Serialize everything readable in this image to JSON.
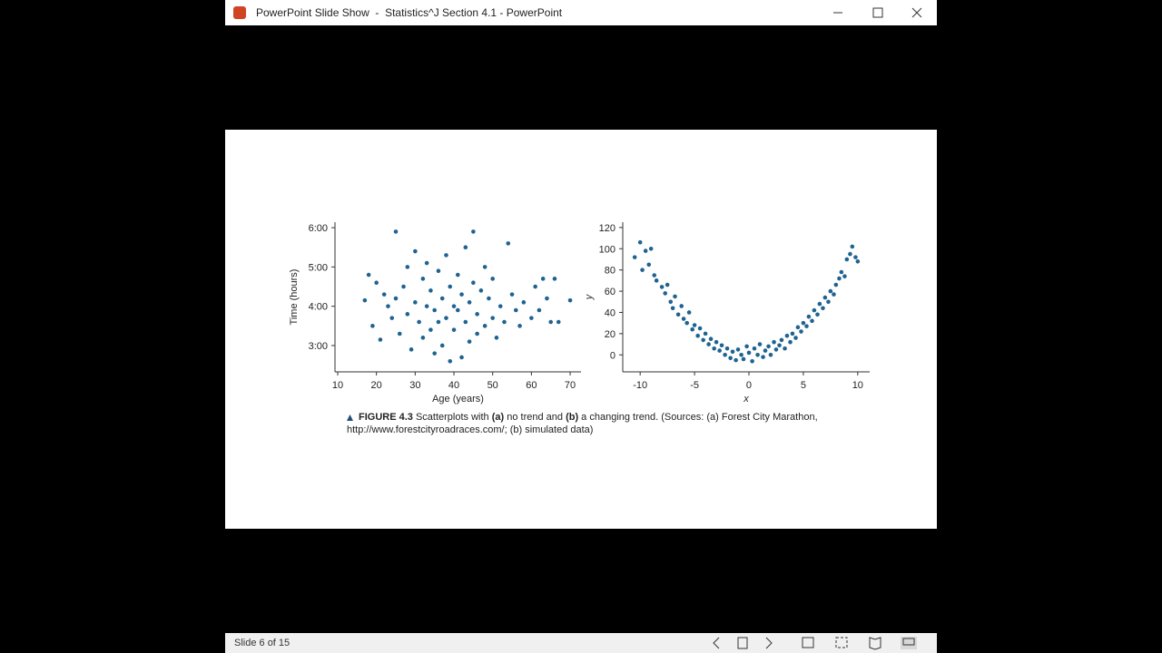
{
  "window": {
    "title": "PowerPoint Slide Show  -  Statistics^J Section 4.1 - PowerPoint"
  },
  "status": "Slide 6 of 15",
  "caption": [
    {
      "text": "FIGURE 4.3",
      "bold": true
    },
    {
      "text": " Scatterplots with ",
      "bold": false
    },
    {
      "text": "(a)",
      "bold": true
    },
    {
      "text": " no trend and ",
      "bold": false
    },
    {
      "text": "(b)",
      "bold": true
    },
    {
      "text": " a changing trend. (Sources: (a) Forest City Marathon, http://www.forestcityroadraces.com/; (b) simulated data)",
      "bold": false
    }
  ],
  "chart_data": [
    {
      "type": "scatter",
      "x_label": "Age (years)",
      "y_label": "Time (hours)",
      "color": "#1f6391",
      "xlim": [
        9.3,
        72.8
      ],
      "xticks": [
        10,
        20,
        30,
        40,
        50,
        60,
        70
      ],
      "ylim": [
        2.33,
        6.14
      ],
      "yticks": [
        {
          "value": 3,
          "label": "3:00"
        },
        {
          "value": 4,
          "label": "4:00"
        },
        {
          "value": 5,
          "label": "5:00"
        },
        {
          "value": 6,
          "label": "6:00"
        }
      ],
      "x": [
        17,
        18,
        19,
        20,
        21,
        22,
        23,
        24,
        25,
        25,
        26,
        27,
        28,
        28,
        29,
        30,
        30,
        31,
        32,
        32,
        33,
        33,
        34,
        34,
        35,
        35,
        36,
        36,
        37,
        37,
        38,
        38,
        39,
        39,
        40,
        40,
        41,
        41,
        42,
        42,
        43,
        43,
        44,
        44,
        45,
        45,
        46,
        46,
        47,
        48,
        48,
        49,
        50,
        50,
        51,
        52,
        53,
        54,
        55,
        56,
        57,
        58,
        60,
        61,
        62,
        63,
        64,
        65,
        66,
        67,
        70
      ],
      "values": [
        4.15,
        4.8,
        3.5,
        4.6,
        3.15,
        4.3,
        4.0,
        3.7,
        5.9,
        4.2,
        3.3,
        4.5,
        5.0,
        3.8,
        2.9,
        4.1,
        5.4,
        3.6,
        4.7,
        3.2,
        4.0,
        5.1,
        3.4,
        4.4,
        2.8,
        3.9,
        4.9,
        3.6,
        4.2,
        3.0,
        5.3,
        3.7,
        4.5,
        2.6,
        4.0,
        3.4,
        4.8,
        3.9,
        2.7,
        4.3,
        5.5,
        3.6,
        4.1,
        3.1,
        5.9,
        4.6,
        3.8,
        3.3,
        4.4,
        5.0,
        3.5,
        4.2,
        3.7,
        4.7,
        3.2,
        4.0,
        3.6,
        5.6,
        4.3,
        3.9,
        3.5,
        4.1,
        3.7,
        4.5,
        3.9,
        4.7,
        4.2,
        3.6,
        4.7,
        3.6,
        4.15
      ]
    },
    {
      "type": "scatter",
      "x_label": "x",
      "y_label": "y",
      "color": "#1f6391",
      "xlim": [
        -11.6,
        11.1
      ],
      "xticks": [
        -10,
        -5,
        0,
        5,
        10
      ],
      "ylim": [
        -16,
        125
      ],
      "yticks": [
        0,
        20,
        40,
        60,
        80,
        100,
        120
      ],
      "x": [
        -10.5,
        -10,
        -9.8,
        -9.5,
        -9.2,
        -9,
        -8.7,
        -8.5,
        -8,
        -7.7,
        -7.5,
        -7.2,
        -7,
        -6.8,
        -6.5,
        -6.2,
        -6,
        -5.7,
        -5.5,
        -5.2,
        -5,
        -4.7,
        -4.5,
        -4.2,
        -4,
        -3.7,
        -3.5,
        -3.2,
        -3,
        -2.7,
        -2.5,
        -2.2,
        -2,
        -1.7,
        -1.5,
        -1.2,
        -1,
        -0.7,
        -0.5,
        -0.2,
        0,
        0.3,
        0.5,
        0.8,
        1,
        1.3,
        1.5,
        1.8,
        2,
        2.3,
        2.5,
        2.8,
        3,
        3.3,
        3.5,
        3.8,
        4,
        4.3,
        4.5,
        4.8,
        5,
        5.3,
        5.5,
        5.8,
        6,
        6.3,
        6.5,
        6.8,
        7,
        7.3,
        7.5,
        7.8,
        8,
        8.3,
        8.5,
        8.8,
        9,
        9.3,
        9.5,
        9.8,
        10
      ],
      "values": [
        92,
        106,
        80,
        98,
        85,
        100,
        75,
        70,
        64,
        58,
        66,
        50,
        44,
        55,
        38,
        46,
        34,
        30,
        40,
        24,
        28,
        18,
        25,
        14,
        20,
        10,
        15,
        6,
        12,
        4,
        9,
        0,
        6,
        -3,
        3,
        -5,
        5,
        0,
        -4,
        8,
        2,
        -6,
        6,
        0,
        10,
        -2,
        4,
        8,
        0,
        12,
        5,
        9,
        14,
        6,
        18,
        12,
        20,
        16,
        26,
        22,
        30,
        27,
        36,
        32,
        42,
        38,
        48,
        44,
        54,
        50,
        60,
        57,
        66,
        72,
        78,
        74,
        90,
        95,
        102,
        92,
        88
      ]
    }
  ]
}
